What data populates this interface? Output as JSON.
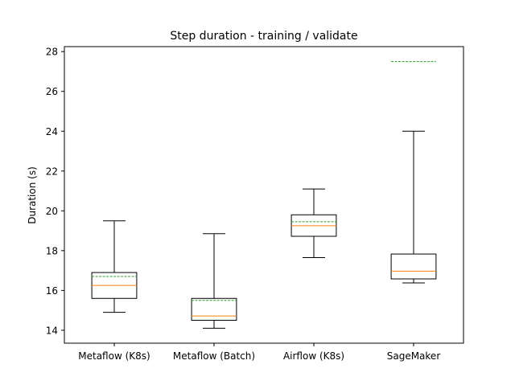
{
  "chart_data": {
    "type": "box",
    "title": "Step duration - training / validate",
    "xlabel": "",
    "ylabel": "Duration (s)",
    "ylim": [
      13.35,
      28.25
    ],
    "yticks": [
      14,
      16,
      18,
      20,
      22,
      24,
      26,
      28
    ],
    "grid": false,
    "categories": [
      "Metaflow (K8s)",
      "Metaflow (Batch)",
      "Airflow (K8s)",
      "SageMaker"
    ],
    "boxes": [
      {
        "whisker_low": 14.9,
        "q1": 15.6,
        "median": 16.25,
        "q3": 16.9,
        "whisker_high": 19.5,
        "mean": 16.7
      },
      {
        "whisker_low": 14.1,
        "q1": 14.5,
        "median": 14.72,
        "q3": 15.6,
        "whisker_high": 18.85,
        "mean": 15.5
      },
      {
        "whisker_low": 17.65,
        "q1": 18.72,
        "median": 19.25,
        "q3": 19.8,
        "whisker_high": 21.1,
        "mean": 19.45
      },
      {
        "whisker_low": 16.38,
        "q1": 16.58,
        "median": 16.97,
        "q3": 17.83,
        "whisker_high": 24.0,
        "mean": 27.5
      }
    ],
    "colors": {
      "box": "#000000",
      "median": "#ff7f0e",
      "mean": "#2ca02c"
    }
  }
}
